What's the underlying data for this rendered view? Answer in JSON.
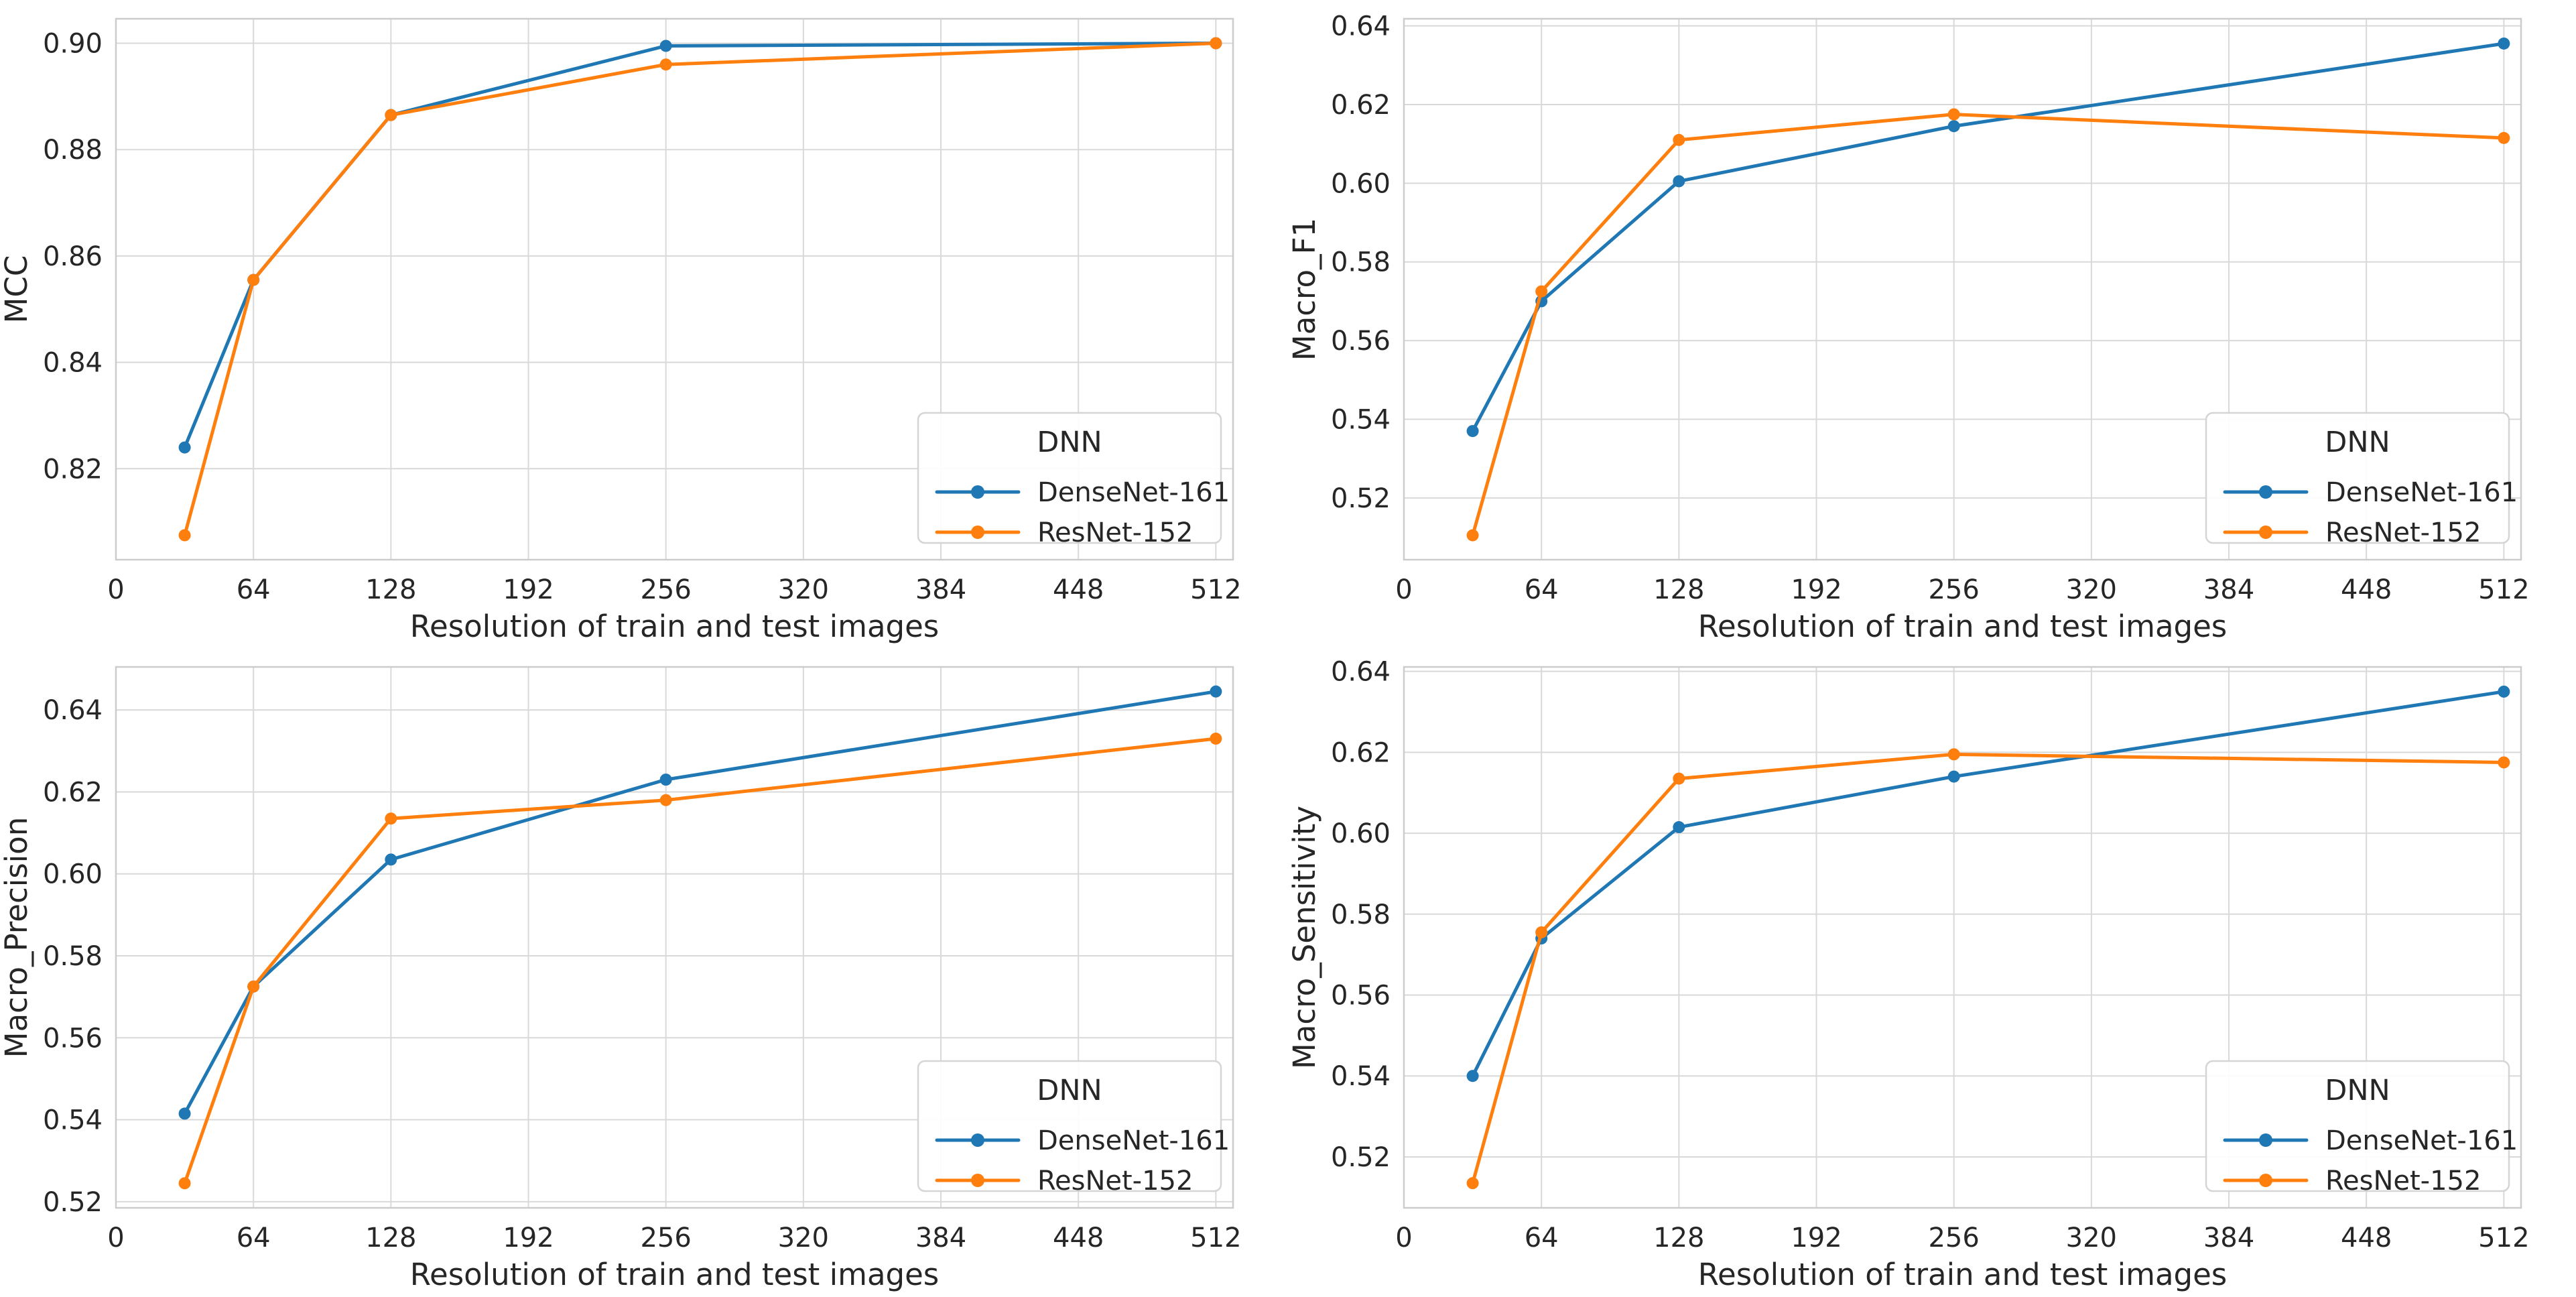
{
  "figure": {
    "background": "#ffffff",
    "grid_color": "#d9d9d9",
    "spine_color": "#cccccc",
    "text_color": "#262626",
    "accent_blue": "#1f77b4",
    "accent_orange": "#ff7f0e"
  },
  "legend": {
    "title": "DNN",
    "entries": [
      {
        "label": "DenseNet-161",
        "color": "#1f77b4"
      },
      {
        "label": "ResNet-152",
        "color": "#ff7f0e"
      }
    ],
    "position": "lower right"
  },
  "chart_data": [
    {
      "type": "line",
      "title": "",
      "ylabel": "MCC",
      "xlabel": "Resolution of train and test images",
      "x": [
        32,
        64,
        128,
        256,
        512
      ],
      "series": [
        {
          "name": "DenseNet-161",
          "color": "#1f77b4",
          "values": [
            0.824,
            0.8555,
            0.8865,
            0.8995,
            0.9
          ]
        },
        {
          "name": "ResNet-152",
          "color": "#ff7f0e",
          "values": [
            0.8075,
            0.8555,
            0.8865,
            0.896,
            0.9
          ]
        }
      ],
      "xlim": [
        0,
        520
      ],
      "ylim": [
        0.8029,
        0.9046
      ],
      "xticks": [
        0,
        64,
        128,
        192,
        256,
        320,
        384,
        448,
        512
      ],
      "xtick_labels": [
        "0",
        "64",
        "128",
        "192",
        "256",
        "320",
        "384",
        "448",
        "512"
      ],
      "yticks": [
        0.82,
        0.84,
        0.86,
        0.88,
        0.9
      ],
      "ytick_labels": [
        "0.82",
        "0.84",
        "0.86",
        "0.88",
        "0.90"
      ],
      "grid": true,
      "legend_position": "lower right"
    },
    {
      "type": "line",
      "title": "",
      "ylabel": "Macro_F1",
      "xlabel": "Resolution of train and test images",
      "x": [
        32,
        64,
        128,
        256,
        512
      ],
      "series": [
        {
          "name": "DenseNet-161",
          "color": "#1f77b4",
          "values": [
            0.537,
            0.57,
            0.6005,
            0.6145,
            0.6355
          ]
        },
        {
          "name": "ResNet-152",
          "color": "#ff7f0e",
          "values": [
            0.5105,
            0.5725,
            0.611,
            0.6175,
            0.6115
          ]
        }
      ],
      "xlim": [
        0,
        520
      ],
      "ylim": [
        0.5043,
        0.6418
      ],
      "xticks": [
        0,
        64,
        128,
        192,
        256,
        320,
        384,
        448,
        512
      ],
      "xtick_labels": [
        "0",
        "64",
        "128",
        "192",
        "256",
        "320",
        "384",
        "448",
        "512"
      ],
      "yticks": [
        0.52,
        0.54,
        0.56,
        0.58,
        0.6,
        0.62,
        0.64
      ],
      "ytick_labels": [
        "0.52",
        "0.54",
        "0.56",
        "0.58",
        "0.60",
        "0.62",
        "0.64"
      ],
      "grid": true,
      "legend_position": "lower right"
    },
    {
      "type": "line",
      "title": "",
      "ylabel": "Macro_Precision",
      "xlabel": "Resolution of train and test images",
      "x": [
        32,
        64,
        128,
        256,
        512
      ],
      "series": [
        {
          "name": "DenseNet-161",
          "color": "#1f77b4",
          "values": [
            0.5415,
            0.5725,
            0.6035,
            0.623,
            0.6445
          ]
        },
        {
          "name": "ResNet-152",
          "color": "#ff7f0e",
          "values": [
            0.5245,
            0.5725,
            0.6135,
            0.618,
            0.633
          ]
        }
      ],
      "xlim": [
        0,
        520
      ],
      "ylim": [
        0.5185,
        0.6505
      ],
      "xticks": [
        0,
        64,
        128,
        192,
        256,
        320,
        384,
        448,
        512
      ],
      "xtick_labels": [
        "0",
        "64",
        "128",
        "192",
        "256",
        "320",
        "384",
        "448",
        "512"
      ],
      "yticks": [
        0.52,
        0.54,
        0.56,
        0.58,
        0.6,
        0.62,
        0.64
      ],
      "ytick_labels": [
        "0.52",
        "0.54",
        "0.56",
        "0.58",
        "0.60",
        "0.62",
        "0.64"
      ],
      "grid": true,
      "legend_position": "lower right"
    },
    {
      "type": "line",
      "title": "",
      "ylabel": "Macro_Sensitivity",
      "xlabel": "Resolution of train and test images",
      "x": [
        32,
        64,
        128,
        256,
        512
      ],
      "series": [
        {
          "name": "DenseNet-161",
          "color": "#1f77b4",
          "values": [
            0.54,
            0.574,
            0.6015,
            0.614,
            0.635
          ]
        },
        {
          "name": "ResNet-152",
          "color": "#ff7f0e",
          "values": [
            0.5135,
            0.5755,
            0.6135,
            0.6195,
            0.6175
          ]
        }
      ],
      "xlim": [
        0,
        520
      ],
      "ylim": [
        0.5074,
        0.6411
      ],
      "xticks": [
        0,
        64,
        128,
        192,
        256,
        320,
        384,
        448,
        512
      ],
      "xtick_labels": [
        "0",
        "64",
        "128",
        "192",
        "256",
        "320",
        "384",
        "448",
        "512"
      ],
      "yticks": [
        0.52,
        0.54,
        0.56,
        0.58,
        0.6,
        0.62,
        0.64
      ],
      "ytick_labels": [
        "0.52",
        "0.54",
        "0.56",
        "0.58",
        "0.60",
        "0.62",
        "0.64"
      ],
      "grid": true,
      "legend_position": "lower right"
    }
  ]
}
